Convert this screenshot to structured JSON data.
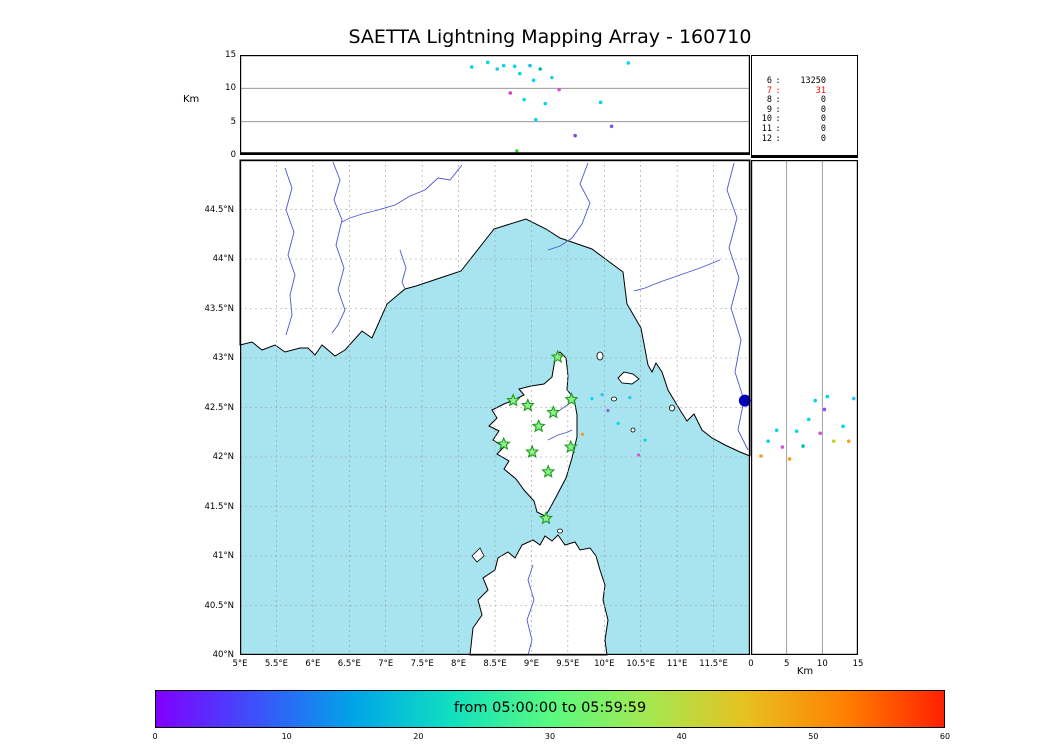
{
  "title": "SAETTA Lightning Mapping Array - 160710",
  "labels": {
    "km_left": "Km",
    "km_bottom": "Km"
  },
  "stats": {
    "rows": [
      {
        "key": "6",
        "value": "13250",
        "red": false
      },
      {
        "key": "7",
        "value": "31",
        "red": true
      },
      {
        "key": "8",
        "value": "0",
        "red": false
      },
      {
        "key": "9",
        "value": "0",
        "red": false
      },
      {
        "key": "10",
        "value": "0",
        "red": false
      },
      {
        "key": "11",
        "value": "0",
        "red": false
      },
      {
        "key": "12",
        "value": "0",
        "red": false
      }
    ]
  },
  "colorbar": {
    "label": "from 05:00:00 to 05:59:59",
    "tick_labels": [
      "0",
      "10",
      "20",
      "30",
      "40",
      "50",
      "60"
    ],
    "range": [
      0,
      60
    ],
    "gradient": [
      "#8000ff",
      "#3c50fa",
      "#00a4e8",
      "#10e0c0",
      "#58fa81",
      "#a4e850",
      "#e8c020",
      "#ff8000",
      "#ff2000"
    ]
  },
  "map_colors": {
    "sea": "#a8e4f0",
    "land": "#ffffff",
    "coast": "#000000",
    "river": "#4a55d2",
    "grid": "#999999",
    "station_fill": "#90ee90",
    "station_edge": "#1a9e1a"
  },
  "chart_data": [
    {
      "type": "scatter",
      "name": "alt_lon",
      "title": "altitude vs longitude (top panel)",
      "ylabel": "Km",
      "xlim": [
        5,
        12
      ],
      "ylim": [
        0,
        15
      ],
      "ytick_labels_top_to_bottom": [
        "15",
        "10",
        "5",
        "0"
      ],
      "gridlines_alt_km": [
        5,
        10
      ],
      "points_lon_alt_color": [
        [
          8.18,
          13.2,
          "#00d8e8"
        ],
        [
          8.4,
          13.9,
          "#00d8e8"
        ],
        [
          8.53,
          12.9,
          "#20c8f0"
        ],
        [
          8.62,
          13.4,
          "#00d8e8"
        ],
        [
          8.71,
          9.3,
          "#cc44cc"
        ],
        [
          8.77,
          13.3,
          "#00d8e8"
        ],
        [
          8.84,
          12.2,
          "#00d8e8"
        ],
        [
          8.9,
          8.3,
          "#00d8e8"
        ],
        [
          8.98,
          13.4,
          "#10c0e0"
        ],
        [
          9.03,
          11.2,
          "#00d8e8"
        ],
        [
          9.12,
          12.9,
          "#00b8a8"
        ],
        [
          9.19,
          7.7,
          "#00d8e8"
        ],
        [
          9.28,
          11.6,
          "#30c8d8"
        ],
        [
          9.38,
          9.8,
          "#d055d0"
        ],
        [
          9.6,
          2.9,
          "#8844dd"
        ],
        [
          9.95,
          7.9,
          "#00d8e8"
        ],
        [
          10.1,
          4.3,
          "#7755ee"
        ],
        [
          10.33,
          13.8,
          "#00d8e8"
        ],
        [
          8.8,
          0.6,
          "#44cc44"
        ],
        [
          9.06,
          5.3,
          "#00d8e8"
        ]
      ]
    },
    {
      "type": "table",
      "name": "source_counts",
      "title": "sources per number of stations",
      "rows": [
        [
          "6",
          "13250"
        ],
        [
          "7",
          "31"
        ],
        [
          "8",
          "0"
        ],
        [
          "9",
          "0"
        ],
        [
          "10",
          "0"
        ],
        [
          "11",
          "0"
        ],
        [
          "12",
          "0"
        ]
      ],
      "highlighted_row": "7"
    },
    {
      "type": "scatter",
      "name": "map",
      "title": "plan view map (Corsica region)",
      "xlim": [
        5,
        12
      ],
      "ylim": [
        40,
        45
      ],
      "lat_tick_labels": [
        "44.5°N",
        "44°N",
        "43.5°N",
        "43°N",
        "42.5°N",
        "42°N",
        "41.5°N",
        "41°N",
        "40.5°N",
        "40°N"
      ],
      "lon_tick_labels": [
        "5°E",
        "5.5°E",
        "6°E",
        "6.5°E",
        "7°E",
        "7.5°E",
        "8°E",
        "8.5°E",
        "9°E",
        "9.5°E",
        "10°E",
        "10.5°E",
        "11°E",
        "11.5°E"
      ],
      "grid_step_deg": 0.5,
      "stations_lon_lat": [
        [
          9.36,
          43.01
        ],
        [
          8.75,
          42.57
        ],
        [
          8.95,
          42.52
        ],
        [
          9.3,
          42.45
        ],
        [
          9.55,
          42.58
        ],
        [
          9.1,
          42.31
        ],
        [
          8.62,
          42.13
        ],
        [
          9.01,
          42.05
        ],
        [
          9.54,
          42.1
        ],
        [
          9.23,
          41.85
        ],
        [
          9.2,
          41.38
        ]
      ],
      "points_lon_lat_color": [
        [
          9.83,
          42.59,
          "#00d8e8"
        ],
        [
          9.97,
          42.63,
          "#30c0f0"
        ],
        [
          10.19,
          42.34,
          "#00d8e8"
        ],
        [
          10.35,
          42.6,
          "#20c8e8"
        ],
        [
          10.47,
          42.02,
          "#d055d0"
        ],
        [
          10.56,
          42.17,
          "#00d8e8"
        ],
        [
          9.7,
          42.23,
          "#ff9920"
        ],
        [
          10.05,
          42.47,
          "#9955ee"
        ]
      ],
      "large_point": {
        "lon": 11.93,
        "lat": 42.57,
        "color": "#0000bb"
      }
    },
    {
      "type": "scatter",
      "name": "alt_lat",
      "title": "altitude vs latitude (right panel)",
      "xlabel": "Km",
      "xlim": [
        0,
        15
      ],
      "ylim": [
        40,
        45
      ],
      "xtick_labels": [
        "0",
        "5",
        "10",
        "15"
      ],
      "gridlines_alt_km": [
        5,
        10
      ],
      "points_alt_lat_color": [
        [
          1.4,
          42.01,
          "#ff9920"
        ],
        [
          2.4,
          42.16,
          "#00d8e8"
        ],
        [
          3.6,
          42.27,
          "#00d8e8"
        ],
        [
          4.4,
          42.1,
          "#d055d0"
        ],
        [
          5.4,
          41.98,
          "#ff9920"
        ],
        [
          6.4,
          42.26,
          "#00d8e8"
        ],
        [
          7.3,
          42.11,
          "#00c0b0"
        ],
        [
          8.1,
          42.38,
          "#00d8e8"
        ],
        [
          9.0,
          42.57,
          "#00d8e8"
        ],
        [
          9.7,
          42.24,
          "#d055d0"
        ],
        [
          10.3,
          42.48,
          "#8855ee"
        ],
        [
          10.7,
          42.61,
          "#00d8e8"
        ],
        [
          11.6,
          42.16,
          "#cccc20"
        ],
        [
          12.9,
          42.31,
          "#00d8e8"
        ],
        [
          13.7,
          42.16,
          "#ff9920"
        ],
        [
          14.4,
          42.59,
          "#30c8e8"
        ]
      ]
    },
    {
      "type": "colorbar",
      "name": "time_colorbar",
      "label": "from 05:00:00 to 05:59:59",
      "tick_labels": [
        "0",
        "10",
        "20",
        "30",
        "40",
        "50",
        "60"
      ],
      "range": [
        0,
        60
      ]
    }
  ]
}
